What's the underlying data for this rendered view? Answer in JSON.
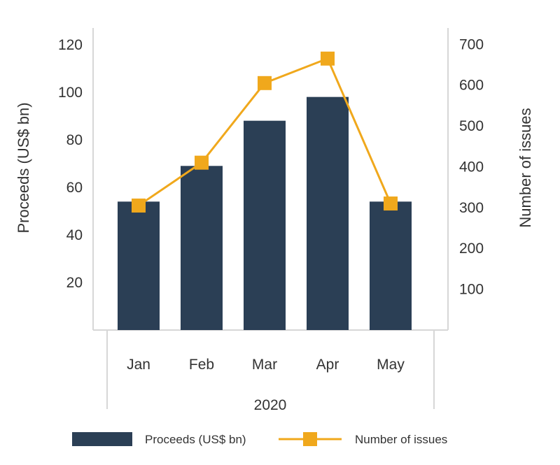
{
  "chart_data": {
    "type": "bar",
    "categories": [
      "Jan",
      "Feb",
      "Mar",
      "Apr",
      "May"
    ],
    "group_label": "2020",
    "series": [
      {
        "name": "Proceeds (US$ bn)",
        "type": "bar",
        "axis": "left",
        "color": "#2b3f55",
        "values": [
          54,
          69,
          88,
          98,
          54
        ]
      },
      {
        "name": "Number of issues",
        "type": "line",
        "axis": "right",
        "color": "#f0a81c",
        "marker": "square",
        "values": [
          305,
          410,
          605,
          665,
          310
        ]
      }
    ],
    "ylabel": "Proceeds (US$ bn)",
    "ylabel_right": "Number of issues",
    "yticks": [
      "120",
      "100",
      "80",
      "60",
      "40",
      "20"
    ],
    "yticks_right": [
      "700",
      "600",
      "500",
      "400",
      "300",
      "200",
      "100"
    ],
    "ylim": [
      0,
      127
    ],
    "ylim_right": [
      0,
      740
    ],
    "grid": false,
    "legend_position": "bottom"
  }
}
